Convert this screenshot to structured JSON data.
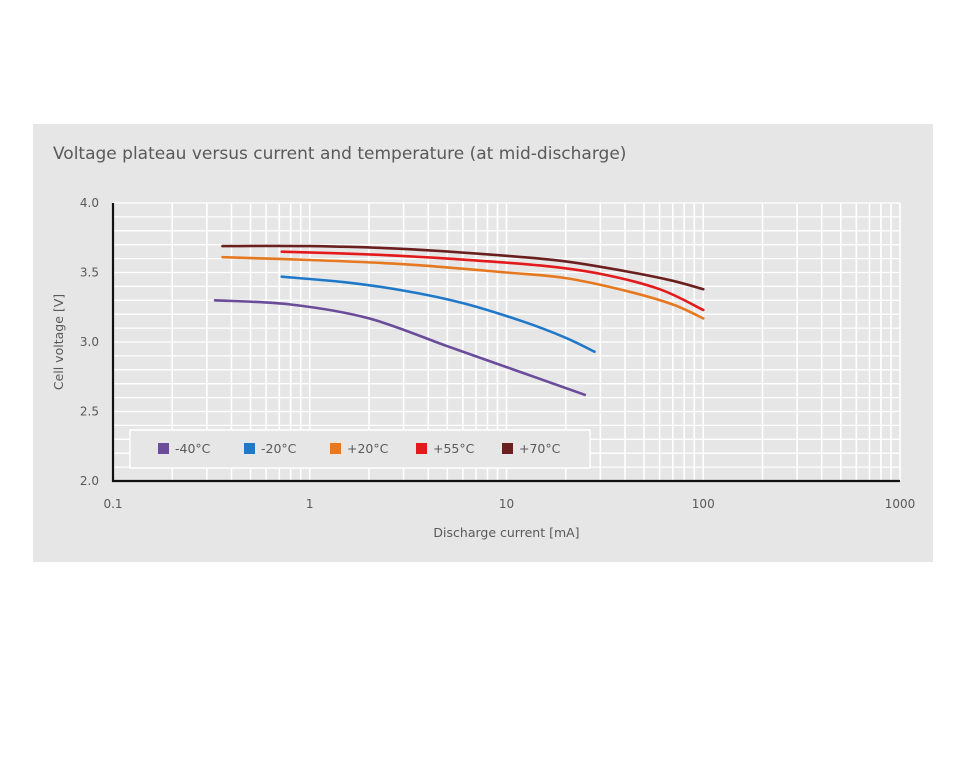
{
  "chart_data": {
    "type": "line",
    "title": "Voltage plateau versus current and temperature (at mid-discharge)",
    "xlabel": "Discharge current [mA]",
    "ylabel": "Cell voltage [V]",
    "x_scale": "log",
    "xlim": [
      0.1,
      1000
    ],
    "ylim": [
      2.0,
      4.0
    ],
    "x_ticks": [
      "0.1",
      "1",
      "10",
      "100",
      "1000"
    ],
    "y_ticks": [
      "2.0",
      "2.5",
      "3.0",
      "3.5",
      "4.0"
    ],
    "grid": true,
    "legend_position": "bottom-left",
    "series": [
      {
        "name": "-40°C",
        "color": "#6b4c9a",
        "points": [
          [
            0.33,
            3.3
          ],
          [
            0.8,
            3.27
          ],
          [
            2.0,
            3.17
          ],
          [
            5.0,
            2.97
          ],
          [
            12.0,
            2.78
          ],
          [
            25.0,
            2.62
          ]
        ]
      },
      {
        "name": "-20°C",
        "color": "#1f78c8",
        "points": [
          [
            0.72,
            3.47
          ],
          [
            1.5,
            3.43
          ],
          [
            3.0,
            3.37
          ],
          [
            6.0,
            3.28
          ],
          [
            12.0,
            3.15
          ],
          [
            20.0,
            3.03
          ],
          [
            28.0,
            2.93
          ]
        ]
      },
      {
        "name": "+20°C",
        "color": "#e67820",
        "points": [
          [
            0.36,
            3.61
          ],
          [
            1.0,
            3.59
          ],
          [
            3.0,
            3.56
          ],
          [
            10.0,
            3.5
          ],
          [
            20.0,
            3.46
          ],
          [
            40.0,
            3.37
          ],
          [
            70.0,
            3.27
          ],
          [
            100.0,
            3.17
          ]
        ]
      },
      {
        "name": "+55°C",
        "color": "#e31a1c",
        "points": [
          [
            0.72,
            3.65
          ],
          [
            2.0,
            3.63
          ],
          [
            5.0,
            3.6
          ],
          [
            15.0,
            3.55
          ],
          [
            30.0,
            3.49
          ],
          [
            60.0,
            3.38
          ],
          [
            100.0,
            3.23
          ]
        ]
      },
      {
        "name": "+70°C",
        "color": "#6b2020",
        "points": [
          [
            0.36,
            3.69
          ],
          [
            1.0,
            3.69
          ],
          [
            3.0,
            3.67
          ],
          [
            10.0,
            3.62
          ],
          [
            20.0,
            3.58
          ],
          [
            40.0,
            3.51
          ],
          [
            70.0,
            3.44
          ],
          [
            100.0,
            3.38
          ]
        ]
      }
    ]
  },
  "colors": {
    "panel_background": "#e6e6e6",
    "gridline": "#ffffff",
    "axis": "#111111",
    "text": "#595959"
  }
}
